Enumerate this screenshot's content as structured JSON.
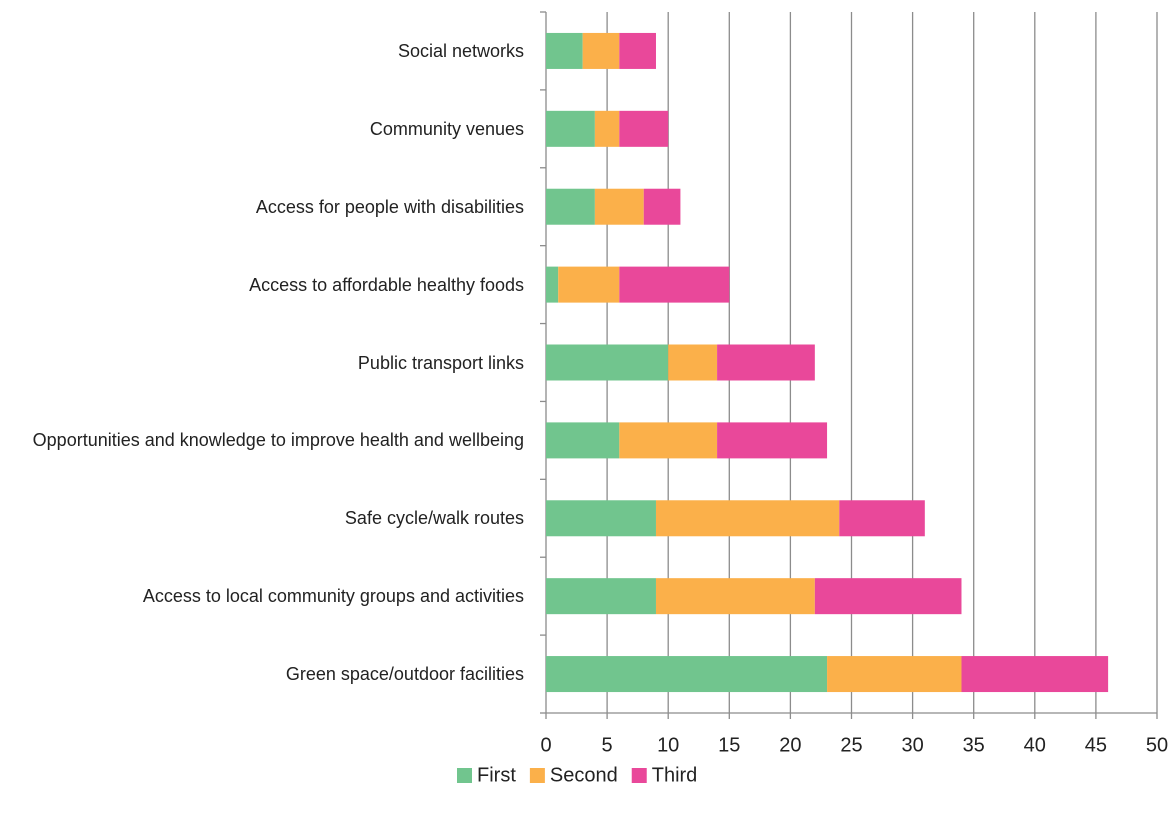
{
  "chart_data": {
    "type": "stacked_barh",
    "categories": [
      "Social networks",
      "Community venues",
      "Access for people with disabilities",
      "Access to affordable healthy foods",
      "Public transport links",
      "Opportunities and knowledge to improve health and wellbeing",
      "Safe cycle/walk routes",
      "Access to local community groups and activities",
      "Green space/outdoor facilities"
    ],
    "series": [
      {
        "name": "First",
        "color": "#71c58e",
        "values": [
          3,
          4,
          4,
          1,
          10,
          6,
          9,
          9,
          23
        ]
      },
      {
        "name": "Second",
        "color": "#fbb04a",
        "values": [
          3,
          2,
          4,
          5,
          4,
          8,
          15,
          13,
          11
        ]
      },
      {
        "name": "Third",
        "color": "#e9489a",
        "values": [
          3,
          4,
          3,
          9,
          8,
          9,
          7,
          12,
          12
        ]
      }
    ],
    "xlim": [
      0,
      50
    ],
    "xticks": [
      0,
      5,
      10,
      15,
      20,
      25,
      30,
      35,
      40,
      45,
      50
    ],
    "grid": true,
    "legend": "bottom"
  }
}
